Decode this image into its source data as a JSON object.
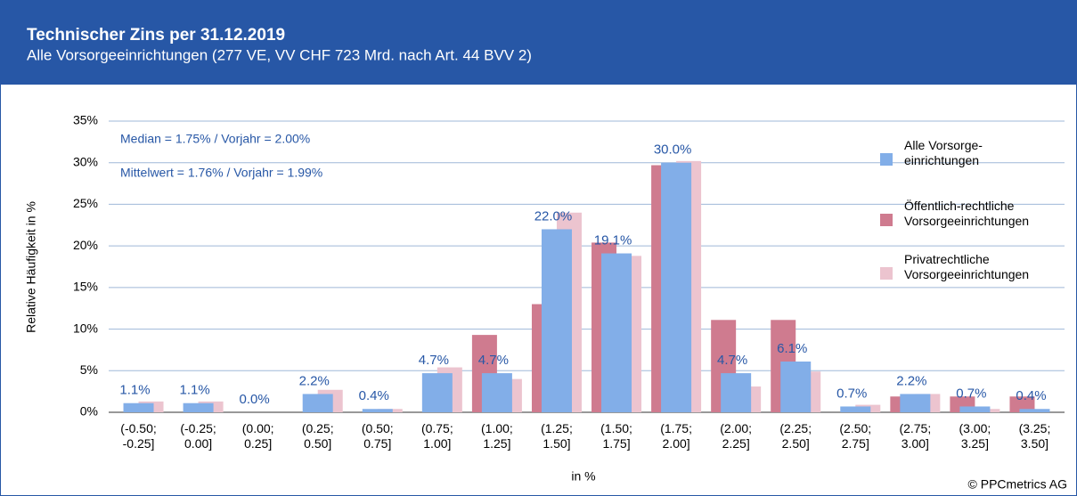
{
  "chart_data": {
    "type": "bar",
    "title": "Technischer Zins per 31.12.2019",
    "subtitle": "Alle Vorsorgeeinrichtungen (277 VE, VV CHF 723 Mrd. nach Art. 44 BVV 2)",
    "annotations": [
      "Median = 1.75% / Vorjahr = 2.00%",
      "Mittelwert = 1.76% / Vorjahr = 1.99%"
    ],
    "y_label": "Relative Häufigkeit in %",
    "x_label": "in %",
    "source": "© PPCmetrics AG",
    "categories": [
      "(-0.50;\n-0.25]",
      "(-0.25;\n0.00]",
      "(0.00;\n0.25]",
      "(0.25;\n0.50]",
      "(0.50;\n0.75]",
      "(0.75;\n1.00]",
      "(1.00;\n1.25]",
      "(1.25;\n1.50]",
      "(1.50;\n1.75]",
      "(1.75;\n2.00]",
      "(2.00;\n2.25]",
      "(2.25;\n2.50]",
      "(2.50;\n2.75]",
      "(2.75;\n3.00]",
      "(3.00;\n3.25]",
      "(3.25;\n3.50]"
    ],
    "series": [
      {
        "name": "Alle Vorsorge-\neinrichtungen",
        "color": "#82aee8",
        "values": [
          1.1,
          1.1,
          0.0,
          2.2,
          0.4,
          4.7,
          4.7,
          22.0,
          19.1,
          30.0,
          4.7,
          6.1,
          0.7,
          2.2,
          0.7,
          0.4
        ],
        "value_labels": [
          "1.1%",
          "1.1%",
          "0.0%",
          "2.2%",
          "0.4%",
          "4.7%",
          "4.7%",
          "22.0%",
          "19.1%",
          "30.0%",
          "4.7%",
          "6.1%",
          "0.7%",
          "2.2%",
          "0.7%",
          "0.4%"
        ]
      },
      {
        "name": "Öffentlich-rechtliche\nVorsorgeeinrichtungen",
        "color": "#cf7b8f",
        "values": [
          0,
          0,
          0,
          0,
          0,
          0,
          9.3,
          13.0,
          20.4,
          29.7,
          11.1,
          11.1,
          0,
          1.9,
          1.9,
          1.9
        ]
      },
      {
        "name": "Privatrechtliche\nVorsorgeeinrichtungen",
        "color": "#ecc4cf",
        "values": [
          1.3,
          1.3,
          0,
          2.7,
          0.4,
          5.4,
          4.0,
          24.0,
          18.8,
          30.2,
          3.1,
          4.9,
          0.9,
          2.2,
          0.4,
          0
        ]
      }
    ],
    "ylim": [
      0,
      35
    ],
    "yticks": [
      {
        "value": 0,
        "label": "0%"
      },
      {
        "value": 5,
        "label": "5%"
      },
      {
        "value": 10,
        "label": "10%"
      },
      {
        "value": 15,
        "label": "15%"
      },
      {
        "value": 20,
        "label": "20%"
      },
      {
        "value": 25,
        "label": "25%"
      },
      {
        "value": 30,
        "label": "30%"
      },
      {
        "value": 35,
        "label": "35%"
      }
    ],
    "grid": true
  }
}
